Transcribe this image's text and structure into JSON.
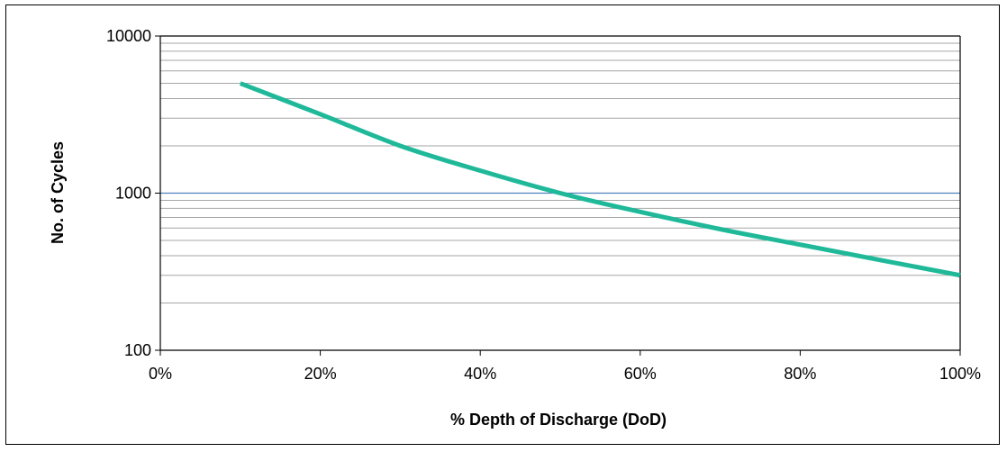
{
  "chart_data": {
    "type": "line",
    "title": "",
    "xlabel": "% Depth of Discharge (DoD)",
    "ylabel": "No. of Cycles",
    "xlim": [
      0,
      100
    ],
    "ylim": [
      100,
      10000
    ],
    "y_scale": "log",
    "x_tick_labels": [
      "0%",
      "20%",
      "40%",
      "60%",
      "80%",
      "100%"
    ],
    "x_ticks": [
      0,
      20,
      40,
      60,
      80,
      100
    ],
    "y_tick_labels": [
      "100",
      "1000",
      "10000"
    ],
    "y_ticks": [
      100,
      1000,
      10000
    ],
    "grid": true,
    "legend": "none",
    "series": [
      {
        "color": "#1fb99a",
        "x": [
          10,
          20,
          30,
          40,
          50,
          60,
          70,
          80,
          90,
          100
        ],
        "y": [
          5000,
          3180,
          2000,
          1390,
          1000,
          760,
          590,
          470,
          375,
          300
        ]
      }
    ],
    "colors": {
      "grid": "#a6a6a6",
      "major_grid": "#4f81bd",
      "axis": "#000000"
    }
  }
}
